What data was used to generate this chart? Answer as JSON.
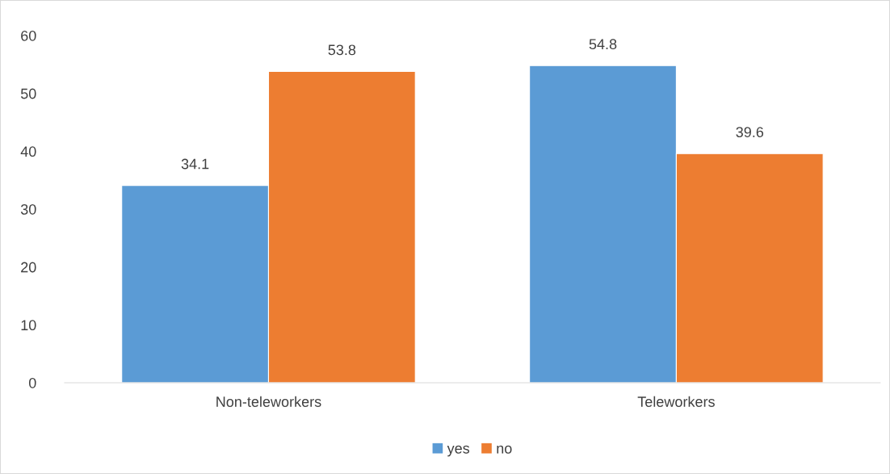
{
  "chart_data": {
    "type": "bar",
    "categories": [
      "Non-teleworkers",
      "Teleworkers"
    ],
    "series": [
      {
        "name": "yes",
        "color": "#5b9bd5",
        "values": [
          34.1,
          54.8
        ]
      },
      {
        "name": "no",
        "color": "#ed7d31",
        "values": [
          53.8,
          39.6
        ]
      }
    ],
    "ylim": [
      0,
      60
    ],
    "yticks": [
      0,
      10,
      20,
      30,
      40,
      50,
      60
    ],
    "grid": false,
    "legend": "bottom",
    "data_labels": true
  }
}
